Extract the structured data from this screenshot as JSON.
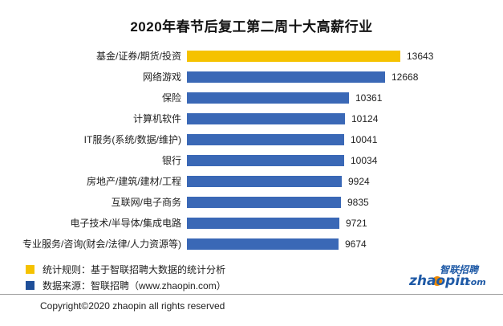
{
  "title": "2020年春节后复工第二周十大高薪行业",
  "chart_data": {
    "type": "bar",
    "orientation": "horizontal",
    "title": "2020年春节后复工第二周十大高薪行业",
    "categories": [
      "基金/证券/期货/投资",
      "网络游戏",
      "保险",
      "计算机软件",
      "IT服务(系统/数据/维护)",
      "银行",
      "房地产/建筑/建材/工程",
      "互联网/电子商务",
      "电子技术/半导体/集成电路",
      "专业服务/咨询(财会/法律/人力资源等)"
    ],
    "values": [
      13643,
      12668,
      10361,
      10124,
      10041,
      10034,
      9924,
      9835,
      9721,
      9674
    ],
    "highlight_index": 0,
    "colors": {
      "highlight": "#f5c200",
      "default": "#3a68b6"
    },
    "xlim": [
      0,
      13643
    ],
    "grid": false,
    "legend": "bottom-left"
  },
  "legend": [
    {
      "color": "#f5c200",
      "text": "统计规则：基于智联招聘大数据的统计分析"
    },
    {
      "color": "#1f4f99",
      "text": "数据来源：智联招聘（www.zhaopin.com）"
    }
  ],
  "logo": {
    "brand": "zhaopin.com",
    "cn": "智联招聘"
  },
  "footer": {
    "copyright": "Copyright©2020 zhaopin all rights reserved"
  }
}
